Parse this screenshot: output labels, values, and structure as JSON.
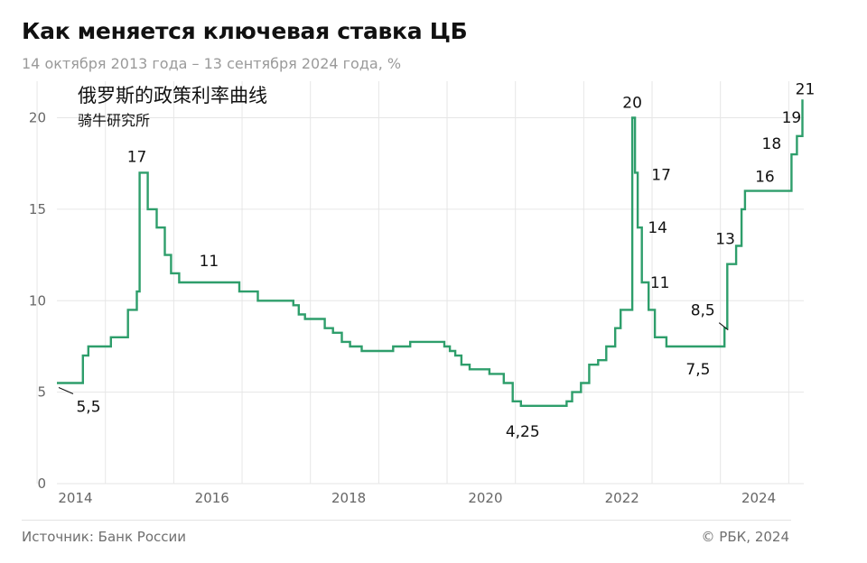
{
  "header": {
    "title": "Как меняется ключевая ставка ЦБ",
    "subtitle": "14 октября 2013 года – 13 сентября 2024 года, %"
  },
  "footer": {
    "source": "Источник: Банк России",
    "copyright": "© РБК, 2024"
  },
  "annotation": {
    "main": "俄罗斯的政策利率曲线",
    "sub": "骑牛研究所"
  },
  "colors": {
    "line": "#2e9e6b",
    "grid": "#e6e6e6",
    "text": "#111111",
    "muted": "#9a9a9a"
  },
  "chart_data": {
    "type": "line",
    "title": "Как меняется ключевая ставка ЦБ",
    "xlabel": "",
    "ylabel": "",
    "xlim": [
      2013.79,
      2024.72
    ],
    "ylim": [
      0,
      22
    ],
    "y_ticks": [
      0,
      5,
      10,
      15,
      20
    ],
    "y_tick_labels": [
      "0",
      "5",
      "10",
      "15",
      "20"
    ],
    "x_ticks": [
      2014,
      2016,
      2018,
      2020,
      2022,
      2024
    ],
    "x_tick_labels": [
      "2014",
      "2016",
      "2018",
      "2020",
      "2022",
      "2024"
    ],
    "grid": true,
    "step": true,
    "series": [
      {
        "name": "Ключевая ставка",
        "x": [
          2013.79,
          2014.17,
          2014.25,
          2014.33,
          2014.58,
          2014.83,
          2014.96,
          2015.0,
          2015.04,
          2015.12,
          2015.25,
          2015.37,
          2015.46,
          2015.58,
          2016.46,
          2016.73,
          2017.25,
          2017.33,
          2017.42,
          2017.5,
          2017.71,
          2017.83,
          2017.96,
          2018.08,
          2018.25,
          2018.71,
          2018.96,
          2019.46,
          2019.54,
          2019.62,
          2019.71,
          2019.83,
          2019.96,
          2020.12,
          2020.33,
          2020.46,
          2020.58,
          2021.25,
          2021.33,
          2021.46,
          2021.58,
          2021.71,
          2021.83,
          2021.96,
          2022.04,
          2022.07,
          2022.21,
          2022.25,
          2022.29,
          2022.35,
          2022.45,
          2022.54,
          2022.71,
          2023.56,
          2023.6,
          2023.73,
          2023.81,
          2023.86,
          2023.96,
          2024.1,
          2024.54,
          2024.62,
          2024.7
        ],
        "values": [
          5.5,
          7.0,
          7.5,
          7.5,
          8.0,
          9.5,
          10.5,
          17.0,
          17.0,
          15.0,
          14.0,
          12.5,
          11.5,
          11.0,
          10.5,
          10.0,
          9.75,
          9.25,
          9.0,
          9.0,
          8.5,
          8.25,
          7.75,
          7.5,
          7.25,
          7.5,
          7.75,
          7.5,
          7.25,
          7.0,
          6.5,
          6.25,
          6.25,
          6.0,
          5.5,
          4.5,
          4.25,
          4.5,
          5.0,
          5.5,
          6.5,
          6.75,
          7.5,
          8.5,
          9.5,
          9.5,
          20.0,
          17.0,
          14.0,
          11.0,
          9.5,
          8.0,
          7.5,
          8.5,
          12.0,
          13.0,
          15.0,
          16.0,
          16.0,
          16.0,
          18.0,
          19.0,
          21.0
        ]
      }
    ],
    "labels": [
      {
        "x": 2013.79,
        "y": 5.5,
        "text": "5,5"
      },
      {
        "x": 2014.96,
        "y": 17.0,
        "text": "17"
      },
      {
        "x": 2015.58,
        "y": 11.0,
        "text": "11"
      },
      {
        "x": 2020.58,
        "y": 4.25,
        "text": "4,25"
      },
      {
        "x": 2022.21,
        "y": 20.0,
        "text": "20"
      },
      {
        "x": 2022.25,
        "y": 17.0,
        "text": "17"
      },
      {
        "x": 2022.29,
        "y": 14.0,
        "text": "14"
      },
      {
        "x": 2022.35,
        "y": 11.0,
        "text": "11"
      },
      {
        "x": 2022.71,
        "y": 7.5,
        "text": "7,5"
      },
      {
        "x": 2023.56,
        "y": 8.5,
        "text": "8,5"
      },
      {
        "x": 2023.73,
        "y": 13.0,
        "text": "13"
      },
      {
        "x": 2023.86,
        "y": 16.0,
        "text": "16"
      },
      {
        "x": 2024.54,
        "y": 18.0,
        "text": "18"
      },
      {
        "x": 2024.62,
        "y": 19.0,
        "text": "19"
      },
      {
        "x": 2024.7,
        "y": 21.0,
        "text": "21"
      }
    ]
  }
}
